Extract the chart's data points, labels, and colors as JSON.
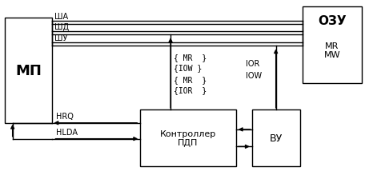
{
  "bg_color": "#ffffff",
  "line_color": "#000000",
  "mp_label": "МП",
  "ozu_label": "ОЗУ",
  "ozu_sub": "MR\nMW",
  "pdp_label": "Контроллер\nПДП",
  "vu_label": "ВУ",
  "bus_labels": [
    "ША",
    "ШД",
    "ШУ"
  ],
  "hrq_label": "HRQ",
  "hlda_label": "HLDA",
  "ior_label": "IOR",
  "iow_label": "IOW"
}
